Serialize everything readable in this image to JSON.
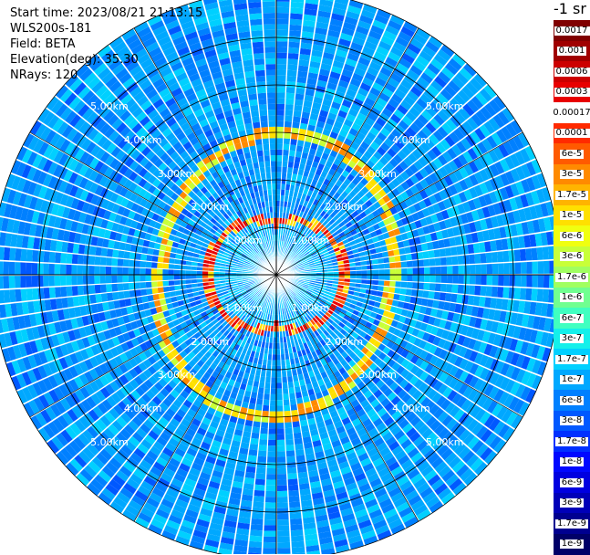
{
  "info": {
    "start_time": "Start time: 2023/08/21 21:13:15",
    "instrument": "WLS200s-181",
    "field": "Field: BETA",
    "elevation": "Elevation(deg): 35.30",
    "nrays": "NRays: 120"
  },
  "colorbar": {
    "title": "-1 sr",
    "levels": [
      {
        "label": "0.0017",
        "color": "#800000"
      },
      {
        "label": "0.001",
        "color": "#a00000"
      },
      {
        "label": "0.0006",
        "color": "#cc0000"
      },
      {
        "label": "0.0003",
        "color": "#e80000"
      },
      {
        "label": "0.00017",
        "color": "#ffffff"
      },
      {
        "label": "0.0001",
        "color": "#ff2a00"
      },
      {
        "label": "6e-5",
        "color": "#ff5a00"
      },
      {
        "label": "3e-5",
        "color": "#ff8a00"
      },
      {
        "label": "1.7e-5",
        "color": "#ffb400"
      },
      {
        "label": "1e-5",
        "color": "#ffe000"
      },
      {
        "label": "6e-6",
        "color": "#f0ff10"
      },
      {
        "label": "3e-6",
        "color": "#c8ff38"
      },
      {
        "label": "1.7e-6",
        "color": "#a0ff60"
      },
      {
        "label": "1e-6",
        "color": "#70ff90"
      },
      {
        "label": "6e-7",
        "color": "#40ffc0"
      },
      {
        "label": "3e-7",
        "color": "#14f0ea"
      },
      {
        "label": "1.7e-7",
        "color": "#00d0ff"
      },
      {
        "label": "1e-7",
        "color": "#00a8ff"
      },
      {
        "label": "6e-8",
        "color": "#0080ff"
      },
      {
        "label": "3e-8",
        "color": "#0058ff"
      },
      {
        "label": "1.7e-8",
        "color": "#0030ff"
      },
      {
        "label": "1e-8",
        "color": "#0008ff"
      },
      {
        "label": "6e-9",
        "color": "#0000e0"
      },
      {
        "label": "3e-9",
        "color": "#0000b8"
      },
      {
        "label": "1.7e-9",
        "color": "#000090"
      },
      {
        "label": "1e-9",
        "color": "#000068"
      }
    ]
  },
  "range_rings": [
    {
      "label": "1.00km",
      "range_km": 1
    },
    {
      "label": "2.00km",
      "range_km": 2
    },
    {
      "label": "3.00km",
      "range_km": 3
    },
    {
      "label": "4.00km",
      "range_km": 4
    },
    {
      "label": "5.00km",
      "range_km": 5
    }
  ],
  "max_range_km": 6,
  "n_rays": 120
}
